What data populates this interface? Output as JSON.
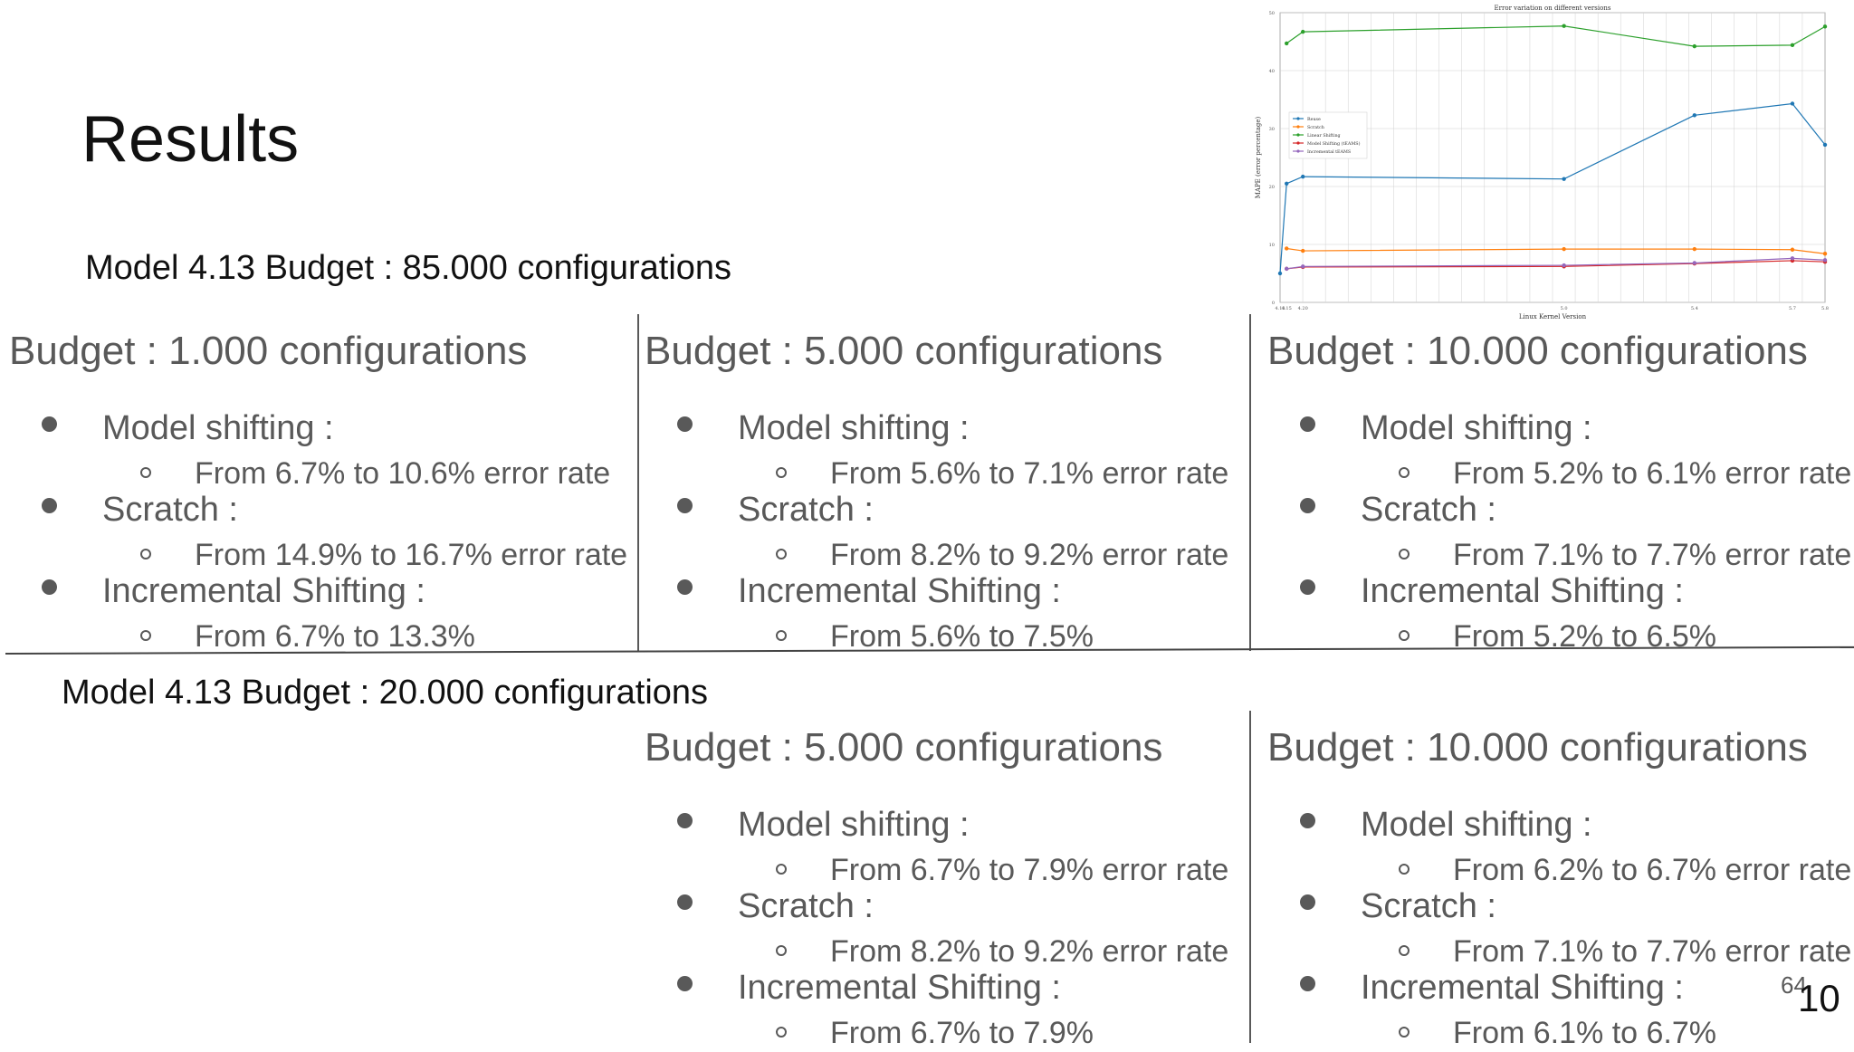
{
  "slide": {
    "title": "Results",
    "page_small": "64",
    "page_large": "10"
  },
  "section1": {
    "heading": "Model 4.13 Budget : 85.000 configurations",
    "columns": [
      {
        "heading": "Budget : 1.000 configurations",
        "items": [
          {
            "label": "Model shifting :",
            "detail": "From 6.7% to 10.6% error rate"
          },
          {
            "label": "Scratch :",
            "detail": "From 14.9% to 16.7% error rate"
          },
          {
            "label": "Incremental Shifting :",
            "detail": "From 6.7% to 13.3%"
          }
        ]
      },
      {
        "heading": "Budget : 5.000 configurations",
        "items": [
          {
            "label": "Model shifting :",
            "detail": "From 5.6% to 7.1% error rate"
          },
          {
            "label": "Scratch :",
            "detail": "From 8.2% to 9.2% error rate"
          },
          {
            "label": "Incremental Shifting :",
            "detail": "From 5.6% to 7.5%"
          }
        ]
      },
      {
        "heading": "Budget : 10.000 configurations",
        "items": [
          {
            "label": "Model shifting :",
            "detail": "From 5.2% to 6.1% error rate"
          },
          {
            "label": "Scratch :",
            "detail": "From 7.1% to 7.7% error rate"
          },
          {
            "label": "Incremental Shifting :",
            "detail": "From 5.2% to 6.5%"
          }
        ]
      }
    ]
  },
  "section2": {
    "heading": "Model 4.13 Budget : 20.000 configurations",
    "columns": [
      {
        "heading": "Budget : 5.000 configurations",
        "items": [
          {
            "label": "Model shifting :",
            "detail": "From 6.7% to 7.9% error rate"
          },
          {
            "label": "Scratch :",
            "detail": "From 8.2% to 9.2% error rate"
          },
          {
            "label": "Incremental Shifting :",
            "detail": "From 6.7% to 7.9%"
          }
        ]
      },
      {
        "heading": "Budget : 10.000 configurations",
        "items": [
          {
            "label": "Model shifting :",
            "detail": "From 6.2% to 6.7% error rate"
          },
          {
            "label": "Scratch :",
            "detail": "From 7.1% to 7.7% error rate"
          },
          {
            "label": "Incremental Shifting :",
            "detail": "From 6.1% to 6.7%"
          }
        ]
      }
    ]
  },
  "chart_data": {
    "type": "line",
    "title": "Error variation on different versions",
    "xlabel": "Linux Kernel Version",
    "ylabel": "MAPE (error percentage)",
    "x": [
      "4.13",
      "4.15",
      "4.20",
      "5.0",
      "5.4",
      "5.7",
      "5.8"
    ],
    "x_positions": [
      4.13,
      4.15,
      4.2,
      5.0,
      5.4,
      5.7,
      5.8
    ],
    "ylim": [
      0,
      50
    ],
    "yticks": [
      "0",
      "10",
      "20",
      "30",
      "40",
      "50"
    ],
    "grid": true,
    "legend_position": "center-left",
    "series": [
      {
        "name": "Reuse",
        "color": "#1f77b4",
        "values": [
          5.0,
          20.5,
          21.7,
          21.3,
          32.3,
          34.3,
          27.2
        ]
      },
      {
        "name": "Scratch",
        "color": "#ff7f0e",
        "values": [
          null,
          9.3,
          8.9,
          9.2,
          9.2,
          9.1,
          8.4
        ]
      },
      {
        "name": "Linear Shifting",
        "color": "#2ca02c",
        "values": [
          null,
          44.7,
          46.7,
          47.7,
          44.2,
          44.4,
          47.6
        ]
      },
      {
        "name": "Model Shifting (tEAMS)",
        "color": "#d62728",
        "values": [
          null,
          5.8,
          6.1,
          6.2,
          6.7,
          7.2,
          7.0
        ]
      },
      {
        "name": "Incremental tEAMS",
        "color": "#9467bd",
        "values": [
          null,
          5.8,
          6.2,
          6.4,
          6.8,
          7.6,
          7.3
        ]
      }
    ]
  }
}
